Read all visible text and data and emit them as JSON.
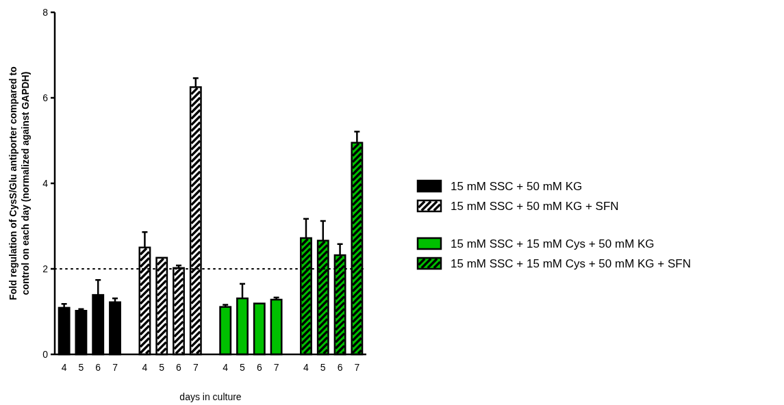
{
  "chart_data": {
    "type": "bar",
    "xlabel": "days in culture",
    "ylabel": "Fold regulation of CysS/Glu antiporter compared to control on each day (normalized against GAPDH)",
    "categories": [
      "4",
      "5",
      "6",
      "7",
      "4",
      "5",
      "6",
      "7",
      "4",
      "5",
      "6",
      "7",
      "4",
      "5",
      "6",
      "7"
    ],
    "series": [
      {
        "name": "15 mM SSC + 50 mM KG",
        "color": "#000000",
        "values": [
          1.09,
          1.02,
          1.39,
          1.22,
          null,
          null,
          null,
          null,
          null,
          null,
          null,
          null,
          null,
          null,
          null,
          null
        ],
        "errors": [
          0.09,
          0.04,
          0.35,
          0.09,
          null,
          null,
          null,
          null,
          null,
          null,
          null,
          null,
          null,
          null,
          null,
          null
        ]
      },
      {
        "name": "15 mM SSC + 50 mM KG + SFN",
        "color": "#ffffff",
        "values": [
          null,
          null,
          null,
          null,
          2.5,
          2.26,
          2.02,
          6.25,
          null,
          null,
          null,
          null,
          null,
          null,
          null,
          null
        ],
        "errors": [
          null,
          null,
          null,
          null,
          0.36,
          null,
          0.06,
          0.21,
          null,
          null,
          null,
          null,
          null,
          null,
          null,
          null
        ]
      },
      {
        "name": "15 mM SSC + 15 mM Cys + 50 mM KG",
        "color": "#00c000",
        "values": [
          null,
          null,
          null,
          null,
          null,
          null,
          null,
          null,
          1.11,
          1.31,
          1.19,
          1.28,
          null,
          null,
          null,
          null
        ],
        "errors": [
          null,
          null,
          null,
          null,
          null,
          null,
          null,
          null,
          0.05,
          0.34,
          null,
          0.05,
          null,
          null,
          null,
          null
        ]
      },
      {
        "name": "15 mM SSC + 15 mM Cys + 50 mM KG + SFN",
        "color": "#00c000",
        "values": [
          null,
          null,
          null,
          null,
          null,
          null,
          null,
          null,
          null,
          null,
          null,
          null,
          2.72,
          2.66,
          2.32,
          4.95
        ],
        "errors": [
          null,
          null,
          null,
          null,
          null,
          null,
          null,
          null,
          null,
          null,
          null,
          null,
          0.45,
          0.46,
          0.26,
          0.26
        ]
      }
    ],
    "ylim": [
      0,
      8
    ],
    "yticks": [
      0,
      2,
      4,
      6,
      8
    ],
    "ref_lines": [
      {
        "axis": "y",
        "value": 2,
        "line_style": "dotted",
        "color": "#000000"
      }
    ],
    "legend": "right",
    "grid": false
  }
}
